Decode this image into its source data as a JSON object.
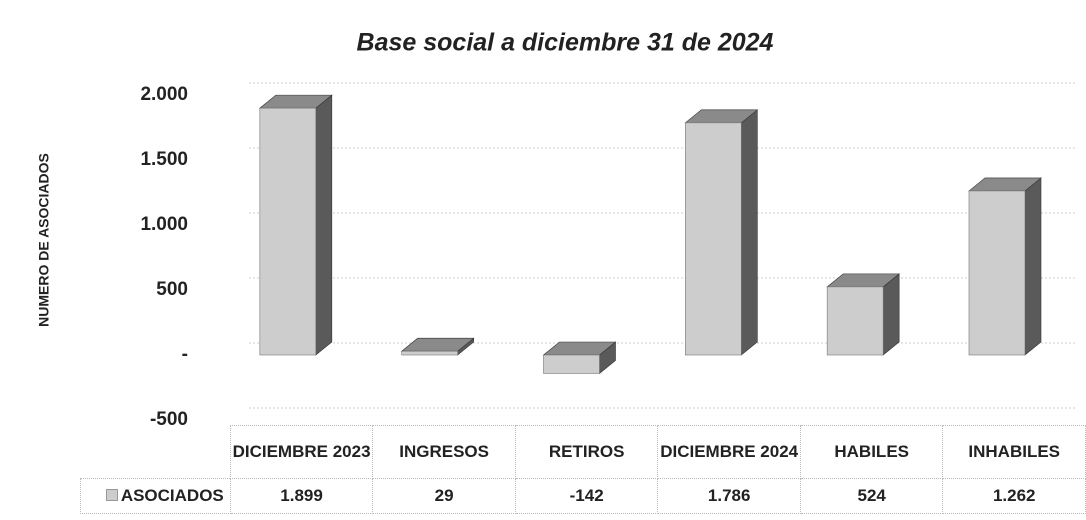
{
  "chart_data": {
    "type": "bar3d",
    "title": "Base social a diciembre 31 de 2024",
    "y_axis_label": "NUMERO DE ASOCIADOS",
    "categories": [
      "DICIEMBRE 2023",
      "INGRESOS",
      "RETIROS",
      "DICIEMBRE 2024",
      "HABILES",
      "INHABILES"
    ],
    "series": [
      {
        "name": "ASOCIADOS",
        "color": "#cdcdcd",
        "values": [
          1899,
          29,
          -142,
          1786,
          524,
          1262
        ],
        "value_labels": [
          "1.899",
          "29",
          "-142",
          "1.786",
          "524",
          "1.262"
        ]
      }
    ],
    "ylim": [
      -500,
      2000
    ],
    "yticks": [
      -500,
      {
        "value": 0,
        "label": "-"
      },
      500,
      {
        "value": 1000,
        "label": "1.000"
      },
      {
        "value": 1500,
        "label": "1.500"
      },
      {
        "value": 2000,
        "label": "2.000"
      }
    ],
    "grid": true
  }
}
